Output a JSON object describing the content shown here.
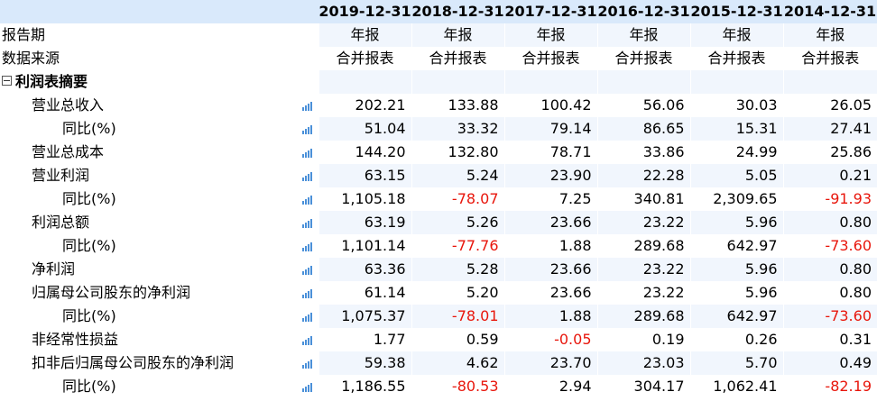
{
  "header": {
    "dates": [
      "2019-12-31",
      "2018-12-31",
      "2017-12-31",
      "2016-12-31",
      "2015-12-31",
      "2014-12-31"
    ]
  },
  "meta_rows": [
    {
      "label": "报告期",
      "values": [
        "年报",
        "年报",
        "年报",
        "年报",
        "年报",
        "年报"
      ]
    },
    {
      "label": "数据来源",
      "values": [
        "合并报表",
        "合并报表",
        "合并报表",
        "合并报表",
        "合并报表",
        "合并报表"
      ]
    }
  ],
  "section": {
    "title": "利润表摘要"
  },
  "rows": [
    {
      "label": "营业总收入",
      "values": [
        "202.21",
        "133.88",
        "100.42",
        "56.06",
        "30.03",
        "26.05"
      ]
    },
    {
      "label": "同比(%)",
      "values": [
        "51.04",
        "33.32",
        "79.14",
        "86.65",
        "15.31",
        "27.41"
      ]
    },
    {
      "label": "营业总成本",
      "values": [
        "144.20",
        "132.80",
        "78.71",
        "33.86",
        "24.99",
        "25.86"
      ]
    },
    {
      "label": "营业利润",
      "values": [
        "63.15",
        "5.24",
        "23.90",
        "22.28",
        "5.05",
        "0.21"
      ]
    },
    {
      "label": "同比(%)",
      "values": [
        "1,105.18",
        "-78.07",
        "7.25",
        "340.81",
        "2,309.65",
        "-91.93"
      ]
    },
    {
      "label": "利润总额",
      "values": [
        "63.19",
        "5.26",
        "23.66",
        "23.22",
        "5.96",
        "0.80"
      ]
    },
    {
      "label": "同比(%)",
      "values": [
        "1,101.14",
        "-77.76",
        "1.88",
        "289.68",
        "642.97",
        "-73.60"
      ]
    },
    {
      "label": "净利润",
      "values": [
        "63.36",
        "5.28",
        "23.66",
        "23.22",
        "5.96",
        "0.80"
      ]
    },
    {
      "label": "归属母公司股东的净利润",
      "values": [
        "61.14",
        "5.20",
        "23.66",
        "23.22",
        "5.96",
        "0.80"
      ]
    },
    {
      "label": "同比(%)",
      "values": [
        "1,075.37",
        "-78.01",
        "1.88",
        "289.68",
        "642.97",
        "-73.60"
      ]
    },
    {
      "label": "非经常性损益",
      "values": [
        "1.77",
        "0.59",
        "-0.05",
        "0.19",
        "0.26",
        "0.31"
      ]
    },
    {
      "label": "扣非后归属母公司股东的净利润",
      "values": [
        "59.38",
        "4.62",
        "23.70",
        "23.03",
        "5.70",
        "0.49"
      ]
    },
    {
      "label": "同比(%)",
      "values": [
        "1,186.55",
        "-80.53",
        "2.94",
        "304.17",
        "1,062.41",
        "-82.19"
      ]
    }
  ],
  "icons": {
    "row_chart": "bar-chart-icon",
    "collapse": "collapse-minus-icon"
  },
  "colors": {
    "header_bg": "#d9e9fb",
    "stripe_bg": "#f1f6fd",
    "negative": "#e8160c",
    "chart_icon": "#4a90d9"
  }
}
